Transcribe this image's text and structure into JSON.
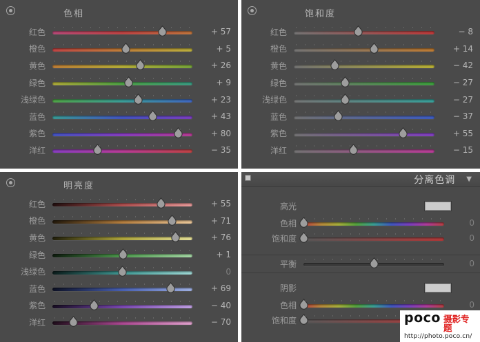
{
  "colors": {
    "panel_bg": "#4a4a4a",
    "header_bg": "#474747",
    "label_text": "#9c9c9c",
    "value_text": "#b5b5b5",
    "title_text": "#b3b3b3",
    "zero_text": "#808080",
    "watermark_red": "#e02423"
  },
  "panels": {
    "hue": {
      "title": "色相",
      "rows": [
        {
          "key": "red",
          "label": "红色",
          "value": 57,
          "text": "+ 57",
          "grad": "hue-red"
        },
        {
          "key": "orange",
          "label": "橙色",
          "value": 5,
          "text": "+ 5",
          "grad": "hue-orange"
        },
        {
          "key": "yellow",
          "label": "黄色",
          "value": 26,
          "text": "+ 26",
          "grad": "hue-yellow"
        },
        {
          "key": "green",
          "label": "绿色",
          "value": 9,
          "text": "+ 9",
          "grad": "hue-green"
        },
        {
          "key": "aqua",
          "label": "浅绿色",
          "value": 23,
          "text": "+ 23",
          "grad": "hue-aqua"
        },
        {
          "key": "blue",
          "label": "蓝色",
          "value": 43,
          "text": "+ 43",
          "grad": "hue-blue"
        },
        {
          "key": "purple",
          "label": "紫色",
          "value": 80,
          "text": "+ 80",
          "grad": "hue-purple"
        },
        {
          "key": "magenta",
          "label": "洋红",
          "value": -35,
          "text": "− 35",
          "grad": "hue-magenta"
        }
      ]
    },
    "saturation": {
      "title": "饱和度",
      "rows": [
        {
          "key": "red",
          "label": "红色",
          "value": -8,
          "text": "− 8",
          "grad": "sat-red"
        },
        {
          "key": "orange",
          "label": "橙色",
          "value": 14,
          "text": "+ 14",
          "grad": "sat-orange"
        },
        {
          "key": "yellow",
          "label": "黄色",
          "value": -42,
          "text": "− 42",
          "grad": "sat-yellow"
        },
        {
          "key": "green",
          "label": "绿色",
          "value": -27,
          "text": "− 27",
          "grad": "sat-green"
        },
        {
          "key": "aqua",
          "label": "浅绿色",
          "value": -27,
          "text": "− 27",
          "grad": "sat-aqua"
        },
        {
          "key": "blue",
          "label": "蓝色",
          "value": -37,
          "text": "− 37",
          "grad": "sat-blue"
        },
        {
          "key": "purple",
          "label": "紫色",
          "value": 55,
          "text": "+ 55",
          "grad": "sat-purple"
        },
        {
          "key": "magenta",
          "label": "洋红",
          "value": -15,
          "text": "− 15",
          "grad": "sat-magenta"
        }
      ]
    },
    "luminance": {
      "title": "明亮度",
      "rows": [
        {
          "key": "red",
          "label": "红色",
          "value": 55,
          "text": "+ 55",
          "grad": "lum-red"
        },
        {
          "key": "orange",
          "label": "橙色",
          "value": 71,
          "text": "+ 71",
          "grad": "lum-orange"
        },
        {
          "key": "yellow",
          "label": "黄色",
          "value": 76,
          "text": "+ 76",
          "grad": "lum-yellow"
        },
        {
          "key": "green",
          "label": "绿色",
          "value": 1,
          "text": "+ 1",
          "grad": "lum-green"
        },
        {
          "key": "aqua",
          "label": "浅绿色",
          "value": 0,
          "text": "0",
          "grad": "lum-aqua"
        },
        {
          "key": "blue",
          "label": "蓝色",
          "value": 69,
          "text": "+ 69",
          "grad": "lum-blue"
        },
        {
          "key": "purple",
          "label": "紫色",
          "value": -40,
          "text": "− 40",
          "grad": "lum-purple"
        },
        {
          "key": "magenta",
          "label": "洋红",
          "value": -70,
          "text": "− 70",
          "grad": "lum-magenta"
        }
      ]
    },
    "split_toning": {
      "title": "分离色调",
      "collapse_icon": "▼",
      "highlights": {
        "label": "高光",
        "swatch": "#cccccc",
        "rows": [
          {
            "key": "hue",
            "label": "色相",
            "value": 0,
            "text": "0",
            "grad": "rainbow",
            "range": "unsigned"
          },
          {
            "key": "saturation",
            "label": "饱和度",
            "value": 0,
            "text": "0",
            "grad": "sat-ramp",
            "range": "unsigned"
          }
        ]
      },
      "balance": {
        "key": "balance",
        "label": "平衡",
        "value": 0,
        "text": "0",
        "grad": "plain"
      },
      "shadows": {
        "label": "阴影",
        "swatch": "#cccccc",
        "rows": [
          {
            "key": "hue",
            "label": "色相",
            "value": 0,
            "text": "0",
            "grad": "rainbow",
            "range": "unsigned"
          },
          {
            "key": "saturation",
            "label": "饱和度",
            "value": 0,
            "text": "0",
            "grad": "sat-ramp",
            "range": "unsigned"
          }
        ]
      }
    }
  },
  "watermark": {
    "logo": "poco",
    "title": "摄影专题",
    "url": "http://photo.poco.cn/"
  }
}
